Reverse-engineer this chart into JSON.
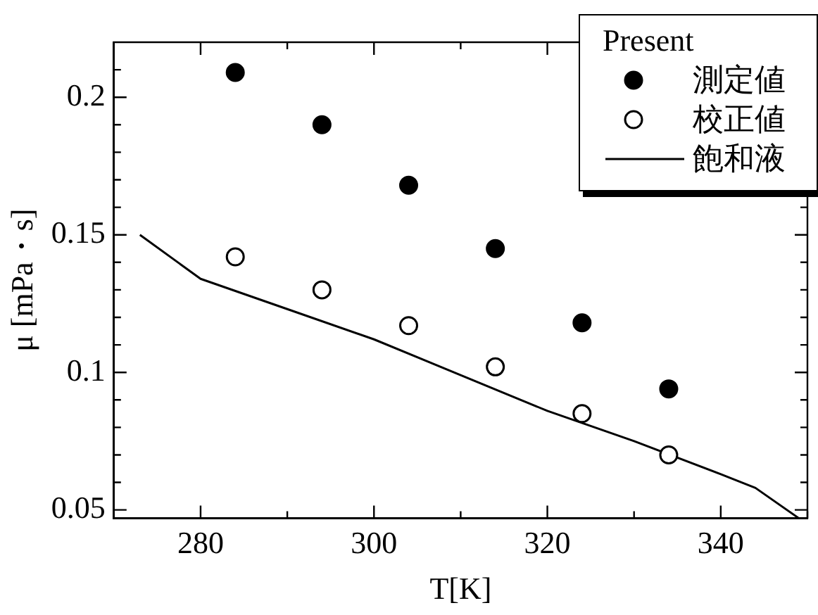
{
  "chart_data": {
    "type": "scatter",
    "xlabel": "T[K]",
    "ylabel": "μ [mPa・s]",
    "legend_title": "Present",
    "legend": "top right",
    "grid": false,
    "marker": "circle",
    "xlim": [
      270,
      350
    ],
    "xticks": [
      {
        "value": 270,
        "label": null
      },
      280,
      {
        "value": 290,
        "label": null
      },
      300,
      {
        "value": 310,
        "label": null
      },
      320,
      {
        "value": 330,
        "label": null
      },
      340,
      {
        "value": 350,
        "label": null
      }
    ],
    "ylim": [
      0.047,
      0.22
    ],
    "yticks": [
      0.05,
      {
        "value": 0.06,
        "label": null
      },
      {
        "value": 0.07,
        "label": null
      },
      {
        "value": 0.08,
        "label": null
      },
      {
        "value": 0.09,
        "label": null
      },
      0.1,
      {
        "value": 0.11,
        "label": null
      },
      {
        "value": 0.12,
        "label": null
      },
      {
        "value": 0.13,
        "label": null
      },
      {
        "value": 0.14,
        "label": null
      },
      0.15,
      {
        "value": 0.16,
        "label": null
      },
      {
        "value": 0.17,
        "label": null
      },
      {
        "value": 0.18,
        "label": null
      },
      {
        "value": 0.19,
        "label": null
      },
      0.2,
      {
        "value": 0.21,
        "label": null
      }
    ],
    "series": [
      {
        "name": "測定値",
        "color": "#000000",
        "x": [
          284,
          294,
          304,
          314,
          324,
          334
        ],
        "values": [
          0.209,
          0.19,
          0.168,
          0.145,
          0.118,
          0.094
        ]
      },
      {
        "name": "校正値",
        "color": "#ffffff",
        "x": [
          284,
          294,
          304,
          314,
          324,
          334
        ],
        "values": [
          0.142,
          0.13,
          0.117,
          0.102,
          0.085,
          0.07
        ]
      },
      {
        "name": "飽和液",
        "type": "line",
        "marker": "none",
        "line_style": "solid",
        "color": "#000000",
        "x": [
          273,
          280,
          290,
          300,
          310,
          320,
          330,
          340,
          344,
          349
        ],
        "values": [
          0.15,
          0.134,
          0.123,
          0.112,
          0.099,
          0.086,
          0.075,
          0.063,
          0.058,
          0.047
        ]
      }
    ]
  }
}
